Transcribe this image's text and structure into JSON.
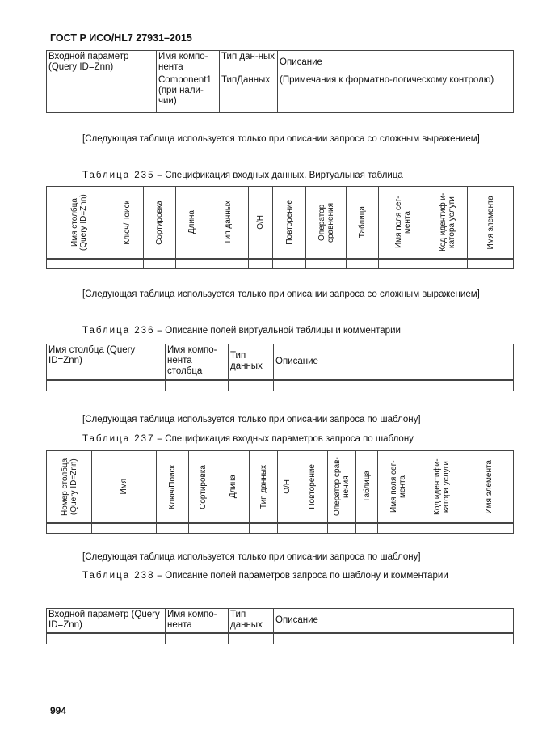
{
  "header": "ГОСТ Р ИСО/HL7 27931–2015",
  "table_top": {
    "headers": [
      "Входной параметр (Query ID=Znn)",
      "Имя компо-нента",
      "Тип дан-ных",
      "Описание"
    ],
    "row": [
      "",
      "Component1 (при нали-чии)",
      "ТипДанных",
      "(Примечания к форматно-логическому контролю)"
    ]
  },
  "note_complex": "[Следующая таблица используется только при описании запроса со сложным выражением]",
  "note_template": "[Следующая таблица используется только при описании запроса по шаблону]",
  "t235": {
    "label": "Таблица 235",
    "title": " – Спецификация входных данных. Виртуальная таблица",
    "headers": [
      "Имя столбца (Query ID=Znn)",
      "Ключ/Поиск",
      "Сортировка",
      "Длина",
      "Тип данных",
      "О/Н",
      "Повторение",
      "Оператор сравнения",
      "Таблица",
      "Имя поля сег-мента",
      "Код идентиф и-катора услуги",
      "Имя элемента"
    ]
  },
  "t236": {
    "label": "Таблица 236",
    "title": " – Описание полей виртуальной таблицы и комментарии",
    "headers": [
      "Имя столбца (Query ID=Znn)",
      "Имя компо-нента столбца",
      "Тип данных",
      "Описание"
    ]
  },
  "t237": {
    "label": "Таблица 237",
    "title": " – Спецификация входных параметров запроса по шаблону",
    "headers": [
      "Номер столбца (Query ID=Znn)",
      "Имя",
      "Ключ/Поиск",
      "Сортировка",
      "Длина",
      "Тип данных",
      "О/Н",
      "Повторение",
      "Оператор срав-нения",
      "Таблица",
      "Имя поля сег-мента",
      "Код идентифи-катора услуги",
      "Имя элемента"
    ]
  },
  "t238": {
    "label": "Таблица 238",
    "title": " – Описание полей параметров запроса по шаблону и комментарии",
    "headers": [
      "Входной параметр (Query ID=Znn)",
      "Имя компо-нента",
      "Тип данных",
      "Описание"
    ]
  },
  "page_number": "994"
}
